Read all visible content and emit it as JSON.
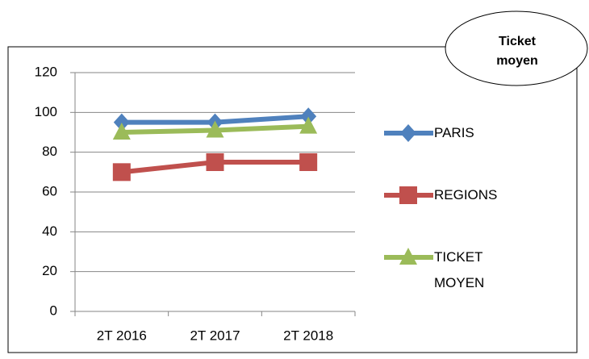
{
  "chart_data": {
    "type": "line",
    "annotation": "Ticket moyen",
    "categories": [
      "2T 2016",
      "2T 2017",
      "2T 2018"
    ],
    "series": [
      {
        "name": "PARIS",
        "color": "#4f81bd",
        "marker": "diamond",
        "values": [
          95,
          95,
          98
        ]
      },
      {
        "name": "REGIONS",
        "color": "#c0504d",
        "marker": "square",
        "values": [
          70,
          75,
          75
        ]
      },
      {
        "name": "TICKET MOYEN",
        "color": "#9bbb59",
        "marker": "triangle",
        "values": [
          90,
          91,
          93
        ]
      }
    ],
    "ylim": [
      0,
      120
    ],
    "yticks": [
      0,
      20,
      40,
      60,
      80,
      100,
      120
    ],
    "grid": true,
    "legend": "right"
  }
}
